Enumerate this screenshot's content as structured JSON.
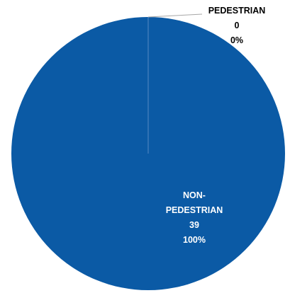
{
  "chart_data": {
    "type": "pie",
    "title": "",
    "slices": [
      {
        "label": "NON-PEDESTRIAN",
        "label_lines": [
          "NON-",
          "PEDESTRIAN"
        ],
        "value": 39,
        "percent": "100%",
        "color": "#0b5aa5",
        "label_color": "#ffffff"
      },
      {
        "label": "PEDESTRIAN",
        "label_lines": [
          "PEDESTRIAN"
        ],
        "value": 0,
        "percent": "0%",
        "color": "#8aa8d6",
        "label_color": "#000000"
      }
    ],
    "legend": false,
    "leader_line": true
  }
}
